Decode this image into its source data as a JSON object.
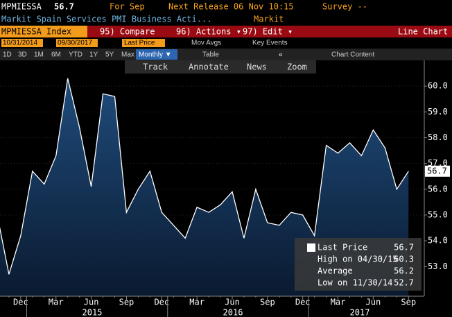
{
  "header": {
    "ticker": "MPMIESSA",
    "value": "56.7",
    "for": "For Sep",
    "next_release": "Next Release 06 Nov 10:15",
    "survey": "Survey --",
    "description": "Markit Spain Services PMI Business Acti...",
    "source": "Markit"
  },
  "toolbar": {
    "security": "MPMIESSA Index",
    "compare": "95) Compare",
    "actions": "96) Actions ▾",
    "edit": "97) Edit ▾",
    "chart_type": "Line Chart"
  },
  "range": {
    "start": "10/31/2014",
    "end": "09/30/2017",
    "field": "Last Price",
    "mov_avgs": "Mov Avgs",
    "key_events": "Key Events"
  },
  "periods": [
    "1D",
    "3D",
    "1M",
    "6M",
    "YTD",
    "1Y",
    "5Y",
    "Max"
  ],
  "frequency": "Monthly ▼",
  "table": "Table",
  "chart_content": "Chart Content",
  "tools": [
    "Track",
    "Annotate",
    "News",
    "Zoom"
  ],
  "chart_data": {
    "type": "area",
    "x": [
      null,
      null,
      "Dec",
      null,
      null,
      "Mar",
      null,
      null,
      "Jun",
      null,
      null,
      "Sep",
      null,
      null,
      "Dec",
      null,
      null,
      "Mar",
      null,
      null,
      "Jun",
      null,
      null,
      "Sep",
      null,
      null,
      "Dec",
      null,
      null,
      "Mar",
      null,
      null,
      "Jun",
      null,
      null,
      "Sep"
    ],
    "years": [
      "2015",
      "2016",
      "2017"
    ],
    "series": [
      {
        "name": "Last Price",
        "color": "#ffffff",
        "values": [
          55.0,
          52.7,
          54.2,
          56.7,
          56.2,
          57.3,
          60.3,
          58.4,
          56.1,
          59.7,
          59.6,
          55.1,
          56.0,
          56.7,
          55.1,
          54.6,
          54.1,
          55.3,
          55.1,
          55.4,
          55.9,
          54.1,
          56.0,
          54.7,
          54.6,
          55.1,
          55.0,
          54.2,
          57.7,
          57.4,
          57.8,
          57.3,
          58.3,
          57.6,
          56.0,
          56.7
        ]
      }
    ],
    "ylim": [
      51.85,
      61.0
    ],
    "yticks": [
      {
        "value": 53,
        "label": "53.0"
      },
      {
        "value": 54,
        "label": "54.0"
      },
      {
        "value": 55,
        "label": "55.0"
      },
      {
        "value": 56,
        "label": "56.0"
      },
      {
        "value": 57,
        "label": "57.0"
      },
      {
        "value": 58,
        "label": "58.0"
      },
      {
        "value": 59,
        "label": "59.0"
      },
      {
        "value": 60,
        "label": "60.0"
      }
    ],
    "grid": true,
    "legend": {
      "last": "Last Price",
      "last_value": "56.7",
      "high": "High on 04/30/15",
      "high_value": "60.3",
      "average": "Average",
      "average_value": "56.2",
      "low": "Low on 11/30/14",
      "low_value": "52.7"
    }
  }
}
